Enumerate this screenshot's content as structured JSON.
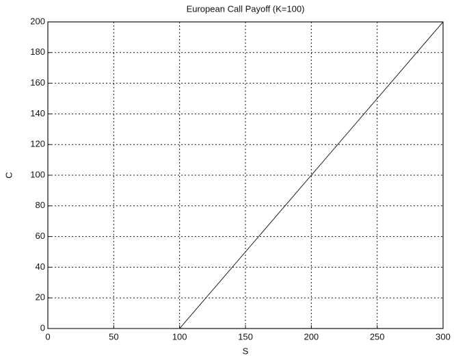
{
  "chart_data": {
    "type": "line",
    "title": "European Call Payoff (K=100)",
    "x_label": "S",
    "y_label": "C",
    "x": [
      0,
      100,
      300
    ],
    "series": [
      {
        "name": "C",
        "color": "#222222",
        "values": [
          0,
          0,
          200
        ]
      }
    ],
    "xlim": [
      0,
      300
    ],
    "xticks": [
      0,
      50,
      100,
      150,
      200,
      250,
      300
    ],
    "ylim": [
      0,
      200
    ],
    "yticks": [
      0,
      20,
      40,
      60,
      80,
      100,
      120,
      140,
      160,
      180,
      200
    ],
    "grid": true
  }
}
